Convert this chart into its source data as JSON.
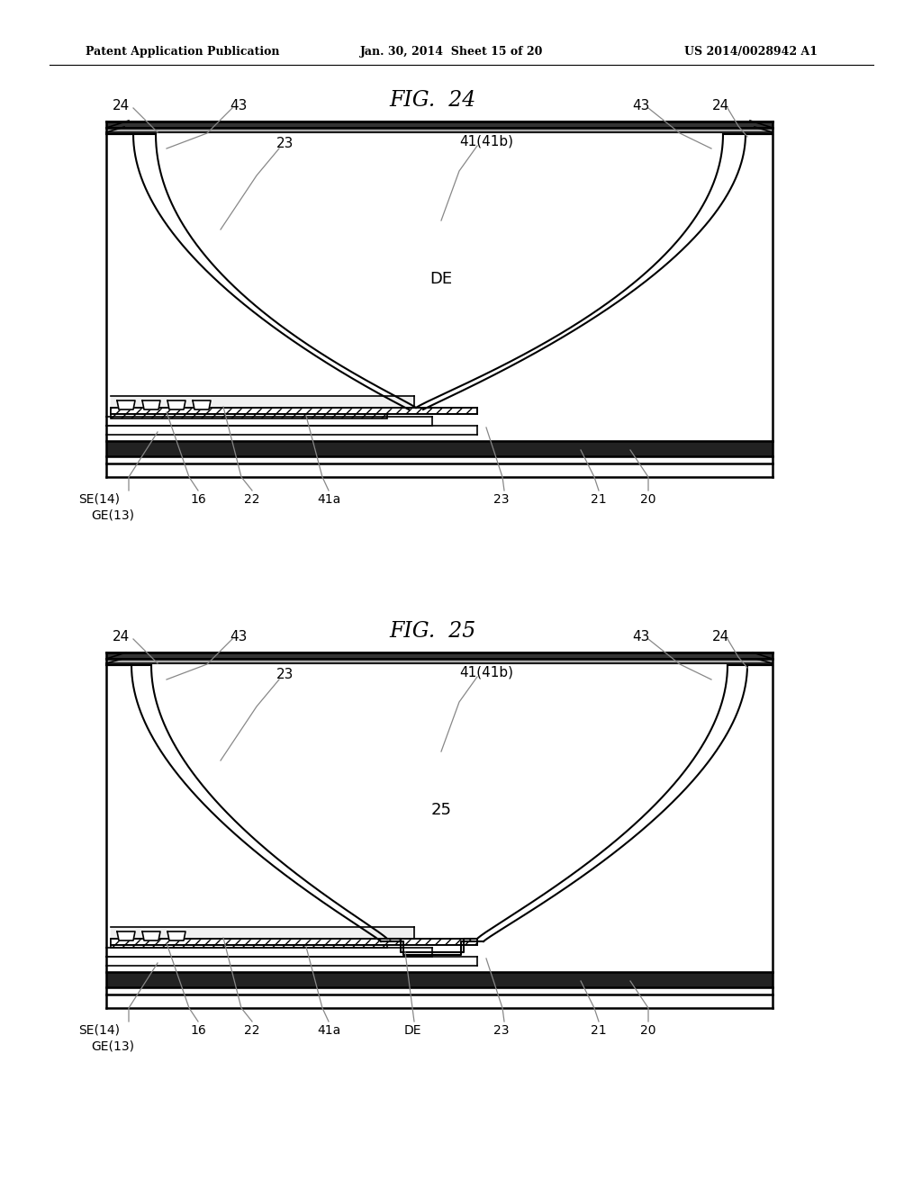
{
  "header_left": "Patent Application Publication",
  "header_mid": "Jan. 30, 2014  Sheet 15 of 20",
  "header_right": "US 2014/0028942 A1",
  "fig24_title": "FIG.  24",
  "fig25_title": "FIG.  25",
  "bg_color": "#ffffff",
  "line_color": "#000000"
}
